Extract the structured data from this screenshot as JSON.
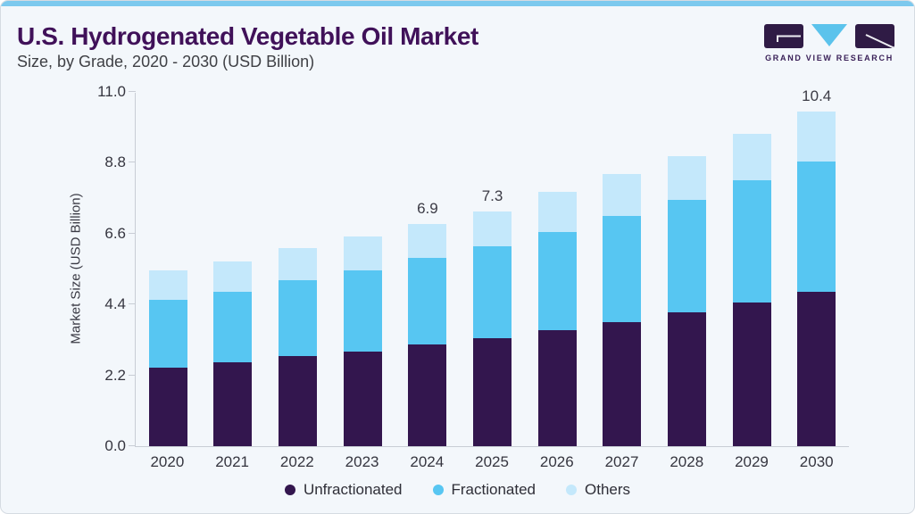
{
  "header": {
    "title": "U.S. Hydrogenated Vegetable Oil Market",
    "subtitle": "Size, by Grade, 2020 - 2030 (USD Billion)"
  },
  "logo": {
    "brand_name": "GRAND VIEW RESEARCH",
    "mark_purple": "#2F1B45",
    "mark_blue": "#5BC3EC"
  },
  "chart_data": {
    "type": "bar",
    "stacked": true,
    "title": "U.S. Hydrogenated Vegetable Oil Market Size, by Grade, 2020 - 2030 (USD Billion)",
    "categories": [
      "2020",
      "2021",
      "2022",
      "2023",
      "2024",
      "2025",
      "2026",
      "2027",
      "2028",
      "2029",
      "2030"
    ],
    "series": [
      {
        "name": "Unfractionated",
        "color": "#33164E",
        "values": [
          2.45,
          2.6,
          2.8,
          2.95,
          3.15,
          3.35,
          3.6,
          3.85,
          4.15,
          4.45,
          4.8
        ]
      },
      {
        "name": "Fractionated",
        "color": "#57C6F2",
        "values": [
          2.1,
          2.2,
          2.35,
          2.5,
          2.7,
          2.85,
          3.05,
          3.3,
          3.5,
          3.8,
          4.05
        ]
      },
      {
        "name": "Others",
        "color": "#C4E8FB",
        "values": [
          0.9,
          0.95,
          1.0,
          1.05,
          1.05,
          1.1,
          1.25,
          1.3,
          1.35,
          1.45,
          1.55
        ]
      }
    ],
    "annotations": [
      "",
      "",
      "",
      "",
      "6.9",
      "7.3",
      "",
      "",
      "",
      "",
      "10.4"
    ],
    "ylabel": "Market Size (USD Billion)",
    "xlabel": "",
    "ylim": [
      0,
      11
    ],
    "yticks": [
      "0.0",
      "2.2",
      "4.4",
      "6.6",
      "8.8",
      "11.0"
    ],
    "grid": false,
    "legend_position": "bottom",
    "colors": {
      "accent_strip": "#7CC9EE",
      "axis": "#C8CDD5",
      "title_text": "#401159",
      "background": "#F3F7FB"
    }
  }
}
